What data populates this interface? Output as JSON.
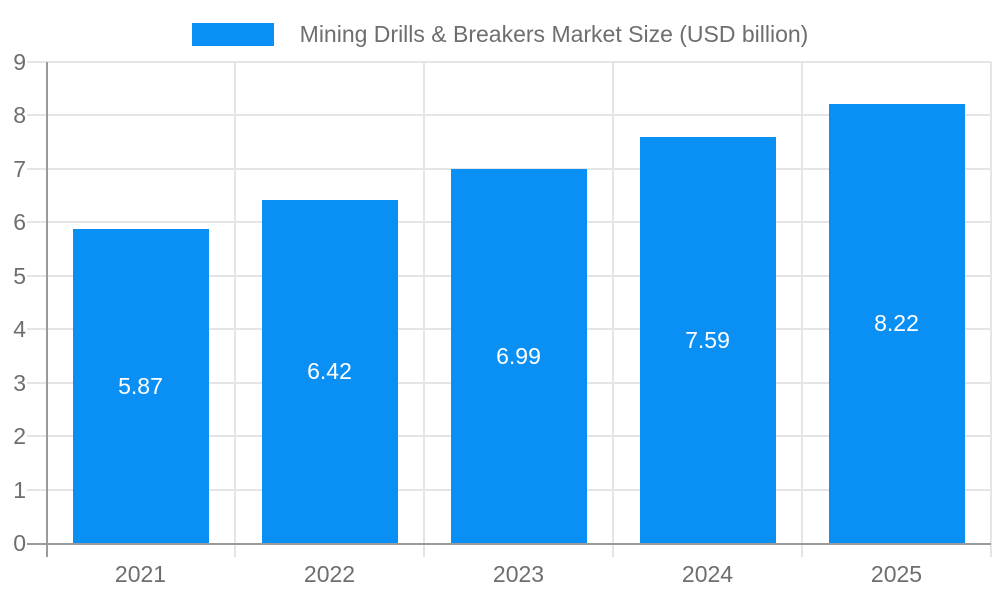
{
  "chart_data": {
    "type": "bar",
    "title": "Mining Drills & Breakers Market Size (USD billion)",
    "categories": [
      "2021",
      "2022",
      "2023",
      "2024",
      "2025"
    ],
    "series": [
      {
        "name": "Mining Drills & Breakers Market Size (USD billion)",
        "values": [
          5.87,
          6.42,
          6.99,
          7.59,
          8.22
        ],
        "value_labels": [
          "5.87",
          "6.42",
          "6.99",
          "7.59",
          "8.22"
        ]
      }
    ],
    "xlabel": "",
    "ylabel": "",
    "ylim": [
      0,
      9
    ],
    "yticks": [
      0,
      1,
      2,
      3,
      4,
      5,
      6,
      7,
      8,
      9
    ],
    "grid": true,
    "legend_position": "top",
    "colors": {
      "bar": "#0A90F5",
      "bar_value_label": "#FFFFFF",
      "axis_line": "#9A9A9A",
      "gridline": "#E5E5E5",
      "text": "#6E6E6E",
      "background": "#FFFFFF"
    }
  }
}
